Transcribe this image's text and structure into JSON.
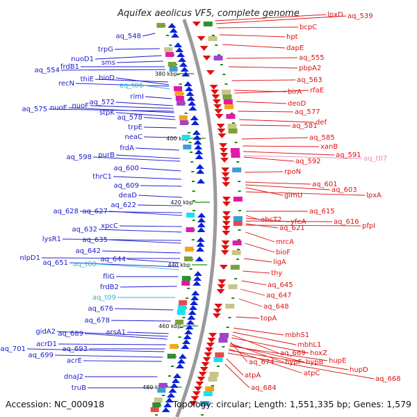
{
  "title": "Aquifex aeolicus VF5, complete genome",
  "footer": {
    "accession": "Accession: NC_000918",
    "topology": "Topology: circular; Length: 1,551,335 bp; Genes: 1,579"
  },
  "colors": {
    "left_label": "#1a1acc",
    "right_label": "#dd1111",
    "trna_left": "#29b6e0",
    "trna_right": "#ee88bb",
    "backbone": "#9a9a9a",
    "tick_mark": "#1a8a1a",
    "gene_forward": "#0a22d8",
    "gene_reverse": "#e01010"
  },
  "ticks": [
    "380 kbp",
    "400 kbp",
    "420 kbp",
    "440 kbp",
    "460 kbp",
    "480 kbp"
  ],
  "left_labels": [
    "aq_548",
    "trpG",
    "nuoD1",
    "sms",
    "frdB1",
    "aq_554",
    "thiE",
    "bioD",
    "recN",
    "aq_t06",
    "rimI",
    "aq_572",
    "nuoF",
    "aq_575",
    "nuoE",
    "stpK",
    "aq_578",
    "trpE",
    "neaC",
    "frdA",
    "purB",
    "aq_598",
    "aq_600",
    "thrC1",
    "aq_609",
    "deaD",
    "aq_622",
    "aq_628",
    "aq_627",
    "xpcC",
    "aq_632",
    "lysR1",
    "aq_635",
    "aq_642",
    "nlpD1",
    "aq_644",
    "aq_651",
    "aq_t08",
    "fliG",
    "frdB2",
    "aq_t09",
    "aq_676",
    "aq_678",
    "arsA1",
    "gidA2",
    "aq_689",
    "acrD1",
    "aq_693",
    "aq_701",
    "aq_699",
    "acrE",
    "dnaJ2",
    "truB"
  ],
  "right_labels": [
    "lpxD",
    "aq_539",
    "bcpC",
    "hpt",
    "dapE",
    "aq_555",
    "pbpA2",
    "aq_563",
    "birA",
    "rfaE",
    "deoD",
    "aq_577",
    "def",
    "aq_581",
    "aq_585",
    "xanB",
    "aq_591",
    "aq_t07",
    "aq_592",
    "rpoN",
    "aq_601",
    "aq_603",
    "glmU",
    "lpxA",
    "aq_615",
    "abcT2",
    "yfeA",
    "aq_616",
    "aq_621",
    "pfpI",
    "mrcA",
    "bioF",
    "ligA",
    "thy",
    "aq_645",
    "aq_647",
    "aq_648",
    "topA",
    "mbhS1",
    "mbhL1",
    "aq_669",
    "hoxZ",
    "aq_674",
    "hypF",
    "hypB",
    "hupE",
    "atpC",
    "hupD",
    "aq_668",
    "atpA",
    "aq_684"
  ]
}
